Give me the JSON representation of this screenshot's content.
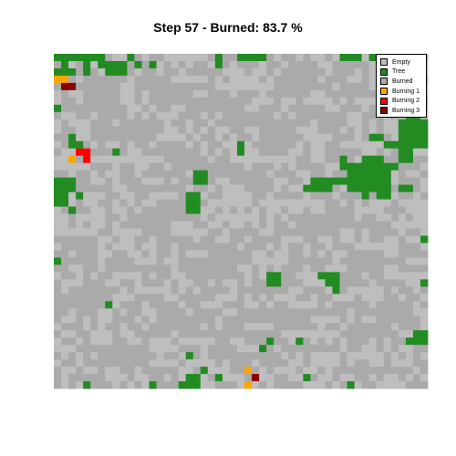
{
  "title": "Step 57 - Burned: 83.7 %",
  "colors": {
    "empty": "#bebebe",
    "tree": "#228b22",
    "burned": "#aaaaaa",
    "burning1": "#ffa500",
    "burning2": "#ff0000",
    "burning3": "#8b0000"
  },
  "legend": [
    {
      "label": "Empty",
      "color": "#bebebe"
    },
    {
      "label": "Tree",
      "color": "#228b22"
    },
    {
      "label": "Burned",
      "color": "#aaaaaa"
    },
    {
      "label": "Burning 1",
      "color": "#ffa500"
    },
    {
      "label": "Burning 2",
      "color": "#ff0000"
    },
    {
      "label": "Burning 3",
      "color": "#8b0000"
    }
  ],
  "chart_data": {
    "type": "heatmap",
    "title": "Step 57 - Burned: 83.7 %",
    "step": 57,
    "burned_percent": 83.7,
    "grid_size": [
      51,
      46
    ],
    "legend_position": "top-right",
    "states": [
      "Empty",
      "Tree",
      "Burned",
      "Burning 1",
      "Burning 2",
      "Burning 3"
    ],
    "tree_rects": [
      [
        0,
        0,
        6,
        1
      ],
      [
        6,
        0,
        1,
        2
      ],
      [
        7,
        1,
        3,
        2
      ],
      [
        10,
        0,
        1,
        1
      ],
      [
        11,
        1,
        1,
        1
      ],
      [
        13,
        1,
        1,
        1
      ],
      [
        0,
        2,
        3,
        1
      ],
      [
        1,
        1,
        1,
        1
      ],
      [
        4,
        1,
        1,
        2
      ],
      [
        22,
        0,
        1,
        2
      ],
      [
        25,
        0,
        4,
        1
      ],
      [
        39,
        0,
        3,
        1
      ],
      [
        43,
        0,
        1,
        1
      ],
      [
        0,
        7,
        1,
        1
      ],
      [
        2,
        11,
        1,
        2
      ],
      [
        3,
        12,
        1,
        1
      ],
      [
        8,
        13,
        1,
        1
      ],
      [
        25,
        12,
        1,
        2
      ],
      [
        0,
        17,
        2,
        4
      ],
      [
        2,
        17,
        1,
        2
      ],
      [
        3,
        19,
        1,
        1
      ],
      [
        2,
        21,
        1,
        1
      ],
      [
        19,
        16,
        2,
        2
      ],
      [
        18,
        19,
        2,
        3
      ],
      [
        47,
        9,
        4,
        3
      ],
      [
        48,
        8,
        2,
        1
      ],
      [
        45,
        12,
        6,
        1
      ],
      [
        43,
        11,
        2,
        1
      ],
      [
        47,
        13,
        2,
        2
      ],
      [
        40,
        15,
        6,
        4
      ],
      [
        42,
        14,
        3,
        1
      ],
      [
        35,
        17,
        3,
        2
      ],
      [
        34,
        18,
        1,
        1
      ],
      [
        39,
        14,
        1,
        2
      ],
      [
        38,
        17,
        2,
        1
      ],
      [
        44,
        19,
        2,
        1
      ],
      [
        42,
        19,
        1,
        1
      ],
      [
        47,
        18,
        2,
        1
      ],
      [
        46,
        15,
        1,
        1
      ],
      [
        29,
        30,
        2,
        2
      ],
      [
        37,
        30,
        2,
        2
      ],
      [
        38,
        32,
        1,
        1
      ],
      [
        36,
        30,
        1,
        1
      ],
      [
        50,
        31,
        1,
        1
      ],
      [
        0,
        28,
        1,
        1
      ],
      [
        50,
        25,
        1,
        1
      ],
      [
        7,
        34,
        1,
        1
      ],
      [
        49,
        38,
        2,
        2
      ],
      [
        48,
        39,
        1,
        1
      ],
      [
        29,
        39,
        1,
        1
      ],
      [
        28,
        40,
        1,
        1
      ],
      [
        33,
        39,
        1,
        1
      ],
      [
        18,
        41,
        1,
        1
      ],
      [
        18,
        44,
        2,
        2
      ],
      [
        17,
        45,
        1,
        1
      ],
      [
        20,
        43,
        1,
        1
      ],
      [
        22,
        44,
        1,
        1
      ],
      [
        4,
        45,
        1,
        1
      ],
      [
        13,
        45,
        1,
        1
      ],
      [
        34,
        44,
        1,
        1
      ],
      [
        40,
        45,
        1,
        1
      ]
    ],
    "burned_rects": [
      [
        5,
        3,
        4,
        5
      ],
      [
        14,
        4,
        5,
        3
      ],
      [
        23,
        6,
        3,
        4
      ],
      [
        30,
        3,
        5,
        3
      ],
      [
        9,
        9,
        4,
        3
      ],
      [
        28,
        10,
        4,
        4
      ],
      [
        12,
        21,
        4,
        4
      ],
      [
        33,
        22,
        5,
        3
      ],
      [
        21,
        27,
        4,
        4
      ],
      [
        3,
        32,
        5,
        3
      ],
      [
        14,
        35,
        4,
        3
      ],
      [
        31,
        35,
        4,
        3
      ],
      [
        8,
        40,
        5,
        3
      ],
      [
        24,
        41,
        3,
        2
      ],
      [
        40,
        27,
        4,
        3
      ],
      [
        45,
        34,
        3,
        3
      ],
      [
        3,
        25,
        3,
        3
      ],
      [
        26,
        16,
        3,
        3
      ],
      [
        16,
        13,
        3,
        3
      ],
      [
        36,
        8,
        3,
        3
      ]
    ],
    "burning_cells": [
      {
        "x": 0,
        "y": 3,
        "state": "Burning 1"
      },
      {
        "x": 1,
        "y": 3,
        "state": "Burning 1"
      },
      {
        "x": 1,
        "y": 4,
        "state": "Burning 3"
      },
      {
        "x": 2,
        "y": 4,
        "state": "Burning 3"
      },
      {
        "x": 3,
        "y": 13,
        "state": "Burning 2"
      },
      {
        "x": 4,
        "y": 13,
        "state": "Burning 2"
      },
      {
        "x": 4,
        "y": 14,
        "state": "Burning 2"
      },
      {
        "x": 2,
        "y": 14,
        "state": "Burning 1"
      },
      {
        "x": 26,
        "y": 43,
        "state": "Burning 1"
      },
      {
        "x": 27,
        "y": 44,
        "state": "Burning 3"
      },
      {
        "x": 26,
        "y": 45,
        "state": "Burning 1"
      }
    ]
  }
}
